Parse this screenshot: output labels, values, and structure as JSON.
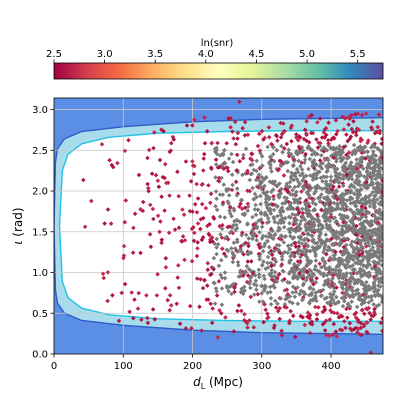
{
  "chart_data": {
    "type": "scatter",
    "title": "",
    "xlabel_main": "d",
    "xlabel_sub": "L",
    "xlabel_unit": " (Mpc)",
    "ylabel_greek": "ι",
    "ylabel_unit": " (rad)",
    "xlim": [
      0,
      475
    ],
    "ylim": [
      0,
      3.14159
    ],
    "xticks": [
      0,
      100,
      200,
      300,
      400
    ],
    "xtick_labels": [
      "0",
      "100",
      "200",
      "300",
      "400"
    ],
    "yticks": [
      0.0,
      0.5,
      1.0,
      1.5,
      2.0,
      2.5,
      3.0
    ],
    "ytick_labels": [
      "0.0",
      "0.5",
      "1.0",
      "1.5",
      "2.0",
      "2.5",
      "3.0"
    ],
    "grid": true,
    "background_region_color": "#5b8fe6",
    "inner_band_color": "#a8dcea",
    "inner_band_edge_color": "#22c3e6",
    "outer_band_edge_color": "#2e5bc8",
    "no_detection_color": "#7a7a7a",
    "boundary_inner": [
      {
        "d": 8,
        "iota": 1.57
      },
      {
        "d": 12,
        "iota": 2.25
      },
      {
        "d": 20,
        "iota": 2.45
      },
      {
        "d": 40,
        "iota": 2.58
      },
      {
        "d": 80,
        "iota": 2.66
      },
      {
        "d": 150,
        "iota": 2.71
      },
      {
        "d": 250,
        "iota": 2.73
      },
      {
        "d": 350,
        "iota": 2.74
      },
      {
        "d": 475,
        "iota": 2.74
      }
    ],
    "boundary_outer": [
      {
        "d": 0,
        "iota": 1.57
      },
      {
        "d": 2,
        "iota": 2.35
      },
      {
        "d": 5,
        "iota": 2.52
      },
      {
        "d": 15,
        "iota": 2.64
      },
      {
        "d": 40,
        "iota": 2.73
      },
      {
        "d": 100,
        "iota": 2.79
      },
      {
        "d": 200,
        "iota": 2.85
      },
      {
        "d": 300,
        "iota": 2.88
      },
      {
        "d": 475,
        "iota": 2.9
      }
    ],
    "colorbar": {
      "label": "ln(snr)",
      "range": [
        2.5,
        5.75
      ],
      "ticks": [
        2.5,
        3.0,
        3.5,
        4.0,
        4.5,
        5.0,
        5.5
      ],
      "tick_labels": [
        "2.5",
        "3.0",
        "3.5",
        "4.0",
        "4.5",
        "5.0",
        "5.5"
      ],
      "colormap": "Spectral",
      "position": "top"
    },
    "scatter_points_description": "Several thousand simulated sources; colored by ln(snr) (mostly 2.5–3.5, red/orange); grey where undetected. Density increases with distance.",
    "n_points": 2600
  }
}
